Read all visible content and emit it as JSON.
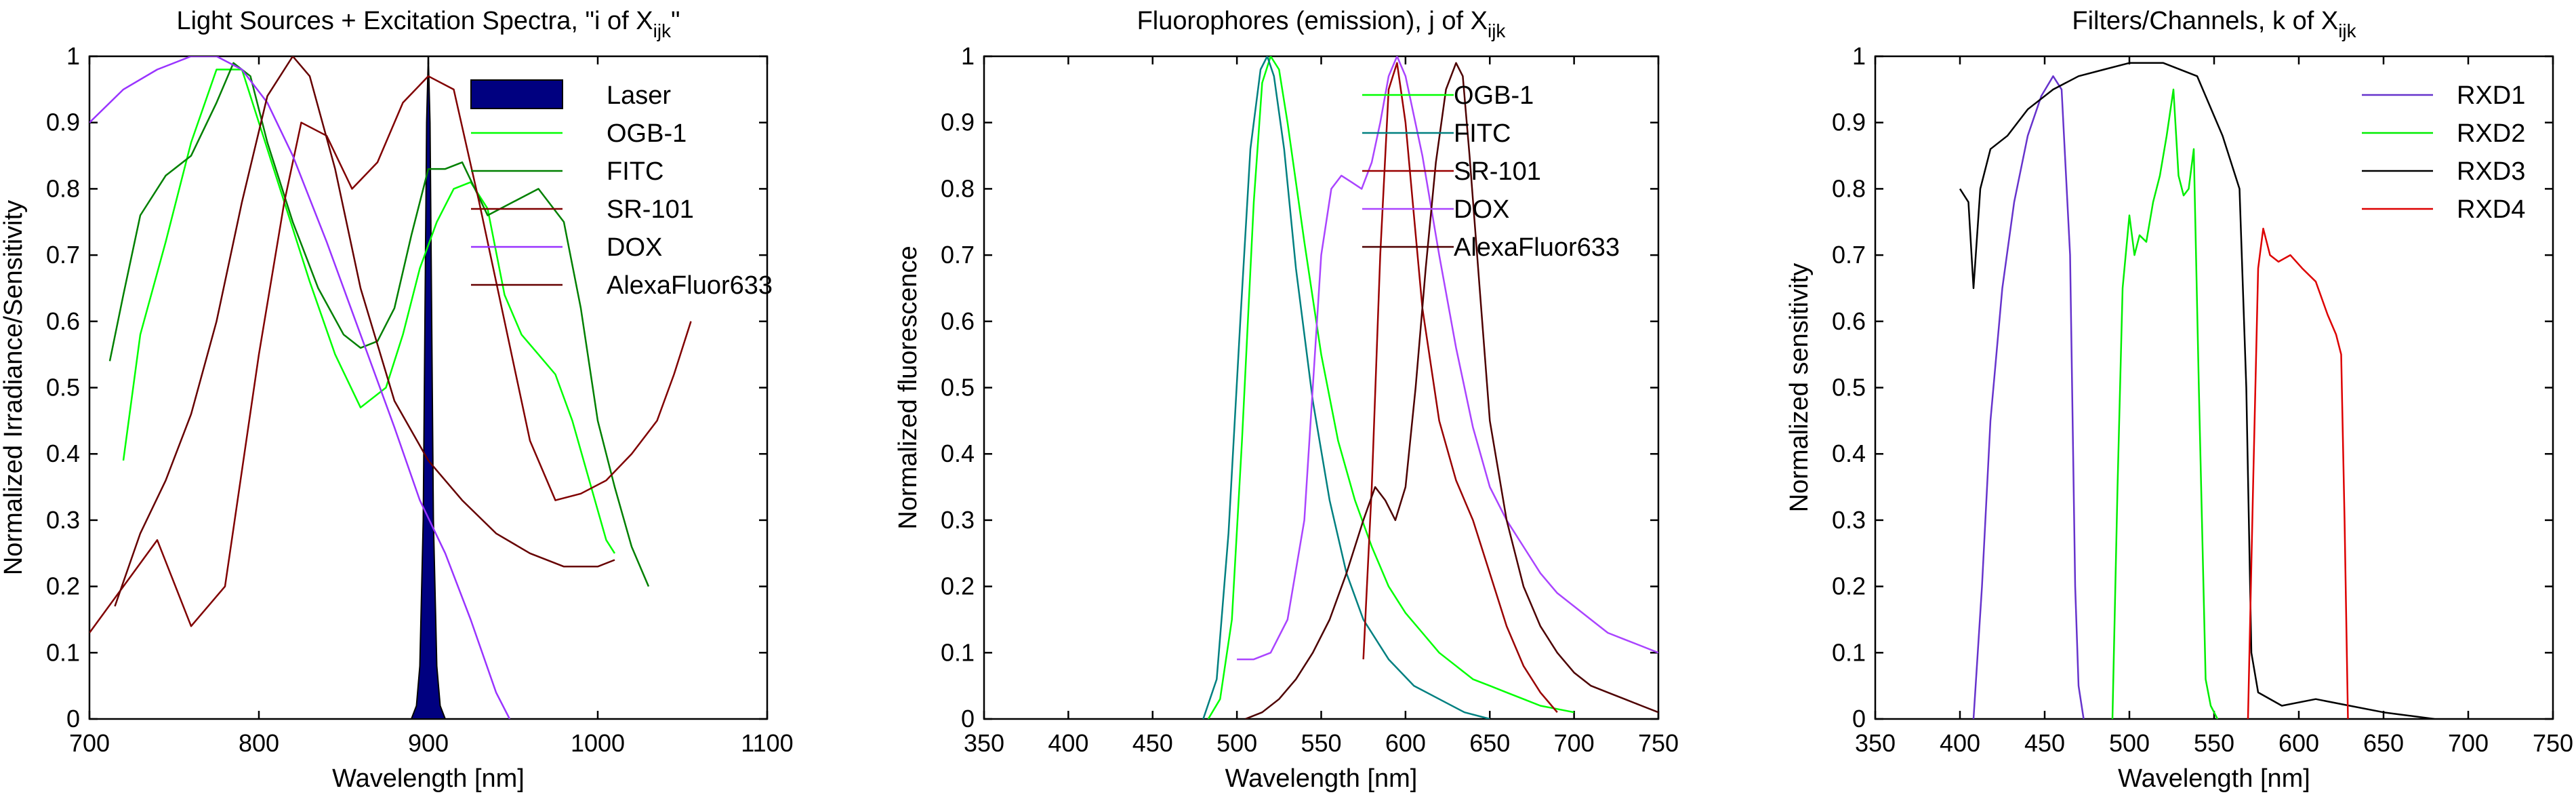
{
  "chart_data": [
    {
      "type": "line",
      "title_main": "Light Sources + Excitation Spectra, \"i of X",
      "title_sub": "ijk",
      "title_end": "\"",
      "xlabel": "Wavelength [nm]",
      "ylabel": "Normalized Irradiance/Sensitivity",
      "xlim": [
        700,
        1100
      ],
      "ylim": [
        0,
        1
      ],
      "xticks": [
        "700",
        "800",
        "900",
        "1000",
        "1100"
      ],
      "yticks": [
        "0",
        "0.1",
        "0.2",
        "0.3",
        "0.4",
        "0.5",
        "0.6",
        "0.7",
        "0.8",
        "0.9",
        "1"
      ],
      "legend_position": "top-right",
      "series": [
        {
          "name": "Laser",
          "color": "#000080",
          "fill": true,
          "x": [
            890,
            893,
            895,
            897,
            898,
            899,
            900,
            901,
            902,
            903,
            905,
            907,
            910
          ],
          "y": [
            0,
            0.02,
            0.08,
            0.3,
            0.6,
            0.9,
            1.0,
            0.9,
            0.6,
            0.3,
            0.08,
            0.02,
            0
          ]
        },
        {
          "name": "OGB-1",
          "color": "#00ff00",
          "x": [
            720,
            730,
            745,
            760,
            775,
            790,
            800,
            815,
            830,
            845,
            860,
            875,
            885,
            895,
            905,
            915,
            925,
            935,
            945,
            955,
            965,
            975,
            985,
            995,
            1005,
            1010
          ],
          "y": [
            0.39,
            0.58,
            0.72,
            0.87,
            0.98,
            0.98,
            0.9,
            0.78,
            0.66,
            0.55,
            0.47,
            0.5,
            0.58,
            0.68,
            0.75,
            0.8,
            0.81,
            0.77,
            0.64,
            0.58,
            0.55,
            0.52,
            0.45,
            0.36,
            0.27,
            0.25
          ]
        },
        {
          "name": "FITC",
          "color": "#008000",
          "x": [
            712,
            720,
            730,
            745,
            760,
            775,
            785,
            795,
            805,
            820,
            835,
            850,
            860,
            870,
            880,
            890,
            900,
            910,
            920,
            935,
            950,
            965,
            980,
            990,
            1000,
            1010,
            1020,
            1030
          ],
          "y": [
            0.54,
            0.64,
            0.76,
            0.82,
            0.85,
            0.93,
            0.99,
            0.97,
            0.87,
            0.75,
            0.65,
            0.58,
            0.56,
            0.57,
            0.62,
            0.73,
            0.83,
            0.83,
            0.84,
            0.76,
            0.78,
            0.8,
            0.75,
            0.62,
            0.45,
            0.35,
            0.26,
            0.2
          ]
        },
        {
          "name": "SR-101",
          "color": "#800000",
          "x": [
            700,
            720,
            740,
            760,
            780,
            800,
            815,
            825,
            840,
            855,
            870,
            885,
            900,
            915,
            930,
            945,
            960,
            975,
            990,
            1005,
            1020,
            1035,
            1045,
            1055
          ],
          "y": [
            0.13,
            0.2,
            0.27,
            0.14,
            0.2,
            0.55,
            0.78,
            0.9,
            0.88,
            0.8,
            0.84,
            0.93,
            0.97,
            0.95,
            0.78,
            0.6,
            0.42,
            0.33,
            0.34,
            0.36,
            0.4,
            0.45,
            0.52,
            0.6
          ]
        },
        {
          "name": "DOX",
          "color": "#9933ff",
          "x": [
            700,
            720,
            740,
            760,
            775,
            790,
            805,
            820,
            840,
            860,
            880,
            895,
            910,
            925,
            940,
            948
          ],
          "y": [
            0.9,
            0.95,
            0.98,
            1.0,
            1.0,
            0.98,
            0.93,
            0.85,
            0.72,
            0.58,
            0.44,
            0.33,
            0.25,
            0.15,
            0.04,
            0.0
          ]
        },
        {
          "name": "AlexaFluor633",
          "color": "#660000",
          "x": [
            715,
            730,
            745,
            760,
            775,
            790,
            805,
            820,
            830,
            845,
            860,
            880,
            900,
            920,
            940,
            960,
            980,
            1000,
            1010
          ],
          "y": [
            0.17,
            0.28,
            0.36,
            0.46,
            0.6,
            0.78,
            0.94,
            1.0,
            0.97,
            0.83,
            0.65,
            0.48,
            0.39,
            0.33,
            0.28,
            0.25,
            0.23,
            0.23,
            0.24
          ]
        }
      ]
    },
    {
      "type": "line",
      "title_main": "Fluorophores (emission), j of X",
      "title_sub": "ijk",
      "title_end": "",
      "xlabel": "Wavelength [nm]",
      "ylabel": "Normalized fluorescence",
      "xlim": [
        350,
        750
      ],
      "ylim": [
        0,
        1
      ],
      "xticks": [
        "350",
        "400",
        "450",
        "500",
        "550",
        "600",
        "650",
        "700",
        "750"
      ],
      "yticks": [
        "0",
        "0.1",
        "0.2",
        "0.3",
        "0.4",
        "0.5",
        "0.6",
        "0.7",
        "0.8",
        "0.9",
        "1"
      ],
      "legend_position": "top-right",
      "series": [
        {
          "name": "OGB-1",
          "color": "#00ff00",
          "x": [
            483,
            490,
            497,
            503,
            510,
            515,
            520,
            525,
            530,
            540,
            550,
            560,
            570,
            580,
            590,
            600,
            610,
            620,
            630,
            640,
            650,
            660,
            670,
            680,
            690,
            700
          ],
          "y": [
            0,
            0.03,
            0.15,
            0.42,
            0.78,
            0.96,
            1.0,
            0.98,
            0.9,
            0.72,
            0.55,
            0.42,
            0.33,
            0.26,
            0.2,
            0.16,
            0.13,
            0.1,
            0.08,
            0.06,
            0.05,
            0.04,
            0.03,
            0.02,
            0.015,
            0.01
          ]
        },
        {
          "name": "FITC",
          "color": "#008080",
          "x": [
            480,
            488,
            495,
            502,
            508,
            514,
            518,
            522,
            528,
            535,
            545,
            555,
            565,
            575,
            590,
            605,
            620,
            635,
            650
          ],
          "y": [
            0,
            0.06,
            0.28,
            0.6,
            0.86,
            0.98,
            1.0,
            0.97,
            0.86,
            0.68,
            0.48,
            0.33,
            0.22,
            0.15,
            0.09,
            0.05,
            0.03,
            0.01,
            0
          ]
        },
        {
          "name": "SR-101",
          "color": "#990000",
          "x": [
            575,
            580,
            585,
            590,
            595,
            600,
            605,
            610,
            620,
            630,
            640,
            650,
            660,
            670,
            680,
            690
          ],
          "y": [
            0.09,
            0.35,
            0.7,
            0.95,
            0.99,
            0.9,
            0.76,
            0.62,
            0.45,
            0.36,
            0.3,
            0.22,
            0.14,
            0.08,
            0.04,
            0.01
          ]
        },
        {
          "name": "DOX",
          "color": "#aa44ff",
          "x": [
            500,
            510,
            520,
            530,
            540,
            550,
            556,
            562,
            568,
            574,
            580,
            585,
            590,
            595,
            600,
            610,
            620,
            630,
            640,
            650,
            660,
            670,
            680,
            690,
            700,
            710,
            720,
            730,
            740,
            750
          ],
          "y": [
            0.09,
            0.09,
            0.1,
            0.15,
            0.3,
            0.7,
            0.8,
            0.82,
            0.81,
            0.8,
            0.84,
            0.9,
            0.97,
            1.0,
            0.97,
            0.85,
            0.7,
            0.56,
            0.44,
            0.35,
            0.3,
            0.26,
            0.22,
            0.19,
            0.17,
            0.15,
            0.13,
            0.12,
            0.11,
            0.1
          ]
        },
        {
          "name": "AlexaFluor633",
          "color": "#4d0000",
          "x": [
            505,
            515,
            525,
            535,
            545,
            555,
            565,
            575,
            582,
            588,
            594,
            600,
            606,
            612,
            618,
            624,
            630,
            634,
            638,
            644,
            650,
            660,
            670,
            680,
            690,
            700,
            710,
            720,
            730,
            740,
            750
          ],
          "y": [
            0,
            0.01,
            0.03,
            0.06,
            0.1,
            0.15,
            0.22,
            0.3,
            0.35,
            0.33,
            0.3,
            0.35,
            0.5,
            0.68,
            0.84,
            0.95,
            0.99,
            0.97,
            0.85,
            0.65,
            0.45,
            0.3,
            0.2,
            0.14,
            0.1,
            0.07,
            0.05,
            0.04,
            0.03,
            0.02,
            0.01
          ]
        }
      ]
    },
    {
      "type": "line",
      "title_main": "Filters/Channels, k of X",
      "title_sub": "ijk",
      "title_end": "",
      "xlabel": "Wavelength [nm]",
      "ylabel": "Normalized sensitivity",
      "xlim": [
        350,
        750
      ],
      "ylim": [
        0,
        1
      ],
      "xticks": [
        "350",
        "400",
        "450",
        "500",
        "550",
        "600",
        "650",
        "700",
        "750"
      ],
      "yticks": [
        "0",
        "0.1",
        "0.2",
        "0.3",
        "0.4",
        "0.5",
        "0.6",
        "0.7",
        "0.8",
        "0.9",
        "1"
      ],
      "legend_position": "top-right",
      "series": [
        {
          "name": "RXD1",
          "color": "#6633cc",
          "x": [
            408,
            413,
            418,
            425,
            432,
            440,
            448,
            455,
            460,
            465,
            468,
            470,
            473
          ],
          "y": [
            0,
            0.2,
            0.45,
            0.65,
            0.78,
            0.88,
            0.94,
            0.97,
            0.95,
            0.7,
            0.2,
            0.05,
            0
          ]
        },
        {
          "name": "RXD2",
          "color": "#00ee00",
          "x": [
            490,
            493,
            496,
            500,
            503,
            506,
            510,
            514,
            518,
            522,
            526,
            529,
            532,
            535,
            538,
            541,
            545,
            548,
            552
          ],
          "y": [
            0,
            0.35,
            0.65,
            0.76,
            0.7,
            0.73,
            0.72,
            0.78,
            0.82,
            0.88,
            0.95,
            0.82,
            0.79,
            0.8,
            0.86,
            0.5,
            0.06,
            0.02,
            0
          ]
        },
        {
          "name": "RXD3",
          "color": "#000000",
          "x": [
            400,
            405,
            408,
            412,
            418,
            428,
            440,
            455,
            470,
            485,
            500,
            520,
            540,
            555,
            565,
            569,
            572,
            576,
            590,
            610,
            630,
            650,
            665,
            680
          ],
          "y": [
            0.8,
            0.78,
            0.65,
            0.8,
            0.86,
            0.88,
            0.92,
            0.95,
            0.97,
            0.98,
            0.99,
            0.99,
            0.97,
            0.88,
            0.8,
            0.5,
            0.1,
            0.04,
            0.02,
            0.03,
            0.02,
            0.01,
            0.005,
            0
          ]
        },
        {
          "name": "RXD4",
          "color": "#dd0000",
          "x": [
            570,
            573,
            576,
            579,
            583,
            588,
            595,
            602,
            610,
            617,
            622,
            625,
            627,
            629
          ],
          "y": [
            0,
            0.35,
            0.68,
            0.74,
            0.7,
            0.69,
            0.7,
            0.68,
            0.66,
            0.61,
            0.58,
            0.55,
            0.3,
            0
          ]
        }
      ]
    }
  ]
}
